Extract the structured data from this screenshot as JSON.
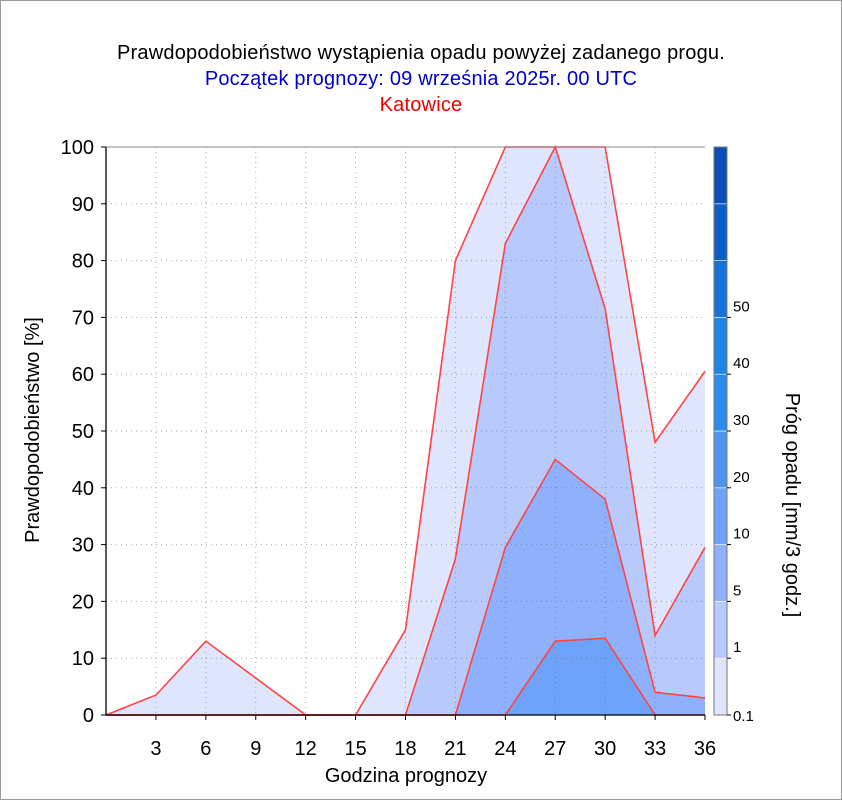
{
  "chart_data": {
    "type": "area",
    "title": "Prawdopodobieństwo wystąpienia opadu powyżej zadanego progu.",
    "subtitle": "Początek prognozy: 09 września 2025r. 00 UTC",
    "location": "Katowice",
    "xlabel": "Godzina prognozy",
    "ylabel": "Prawdopodobieństwo [%]",
    "x": [
      0,
      3,
      6,
      9,
      12,
      15,
      18,
      21,
      24,
      27,
      30,
      33,
      36
    ],
    "x_ticks": [
      "3",
      "6",
      "9",
      "12",
      "15",
      "18",
      "21",
      "24",
      "27",
      "30",
      "33",
      "36"
    ],
    "xlim": [
      0,
      36
    ],
    "ylim": [
      0,
      100
    ],
    "y_ticks": [
      "0",
      "10",
      "20",
      "30",
      "40",
      "50",
      "60",
      "70",
      "80",
      "90",
      "100"
    ],
    "grid": true,
    "series": [
      {
        "threshold": 0.1,
        "color": "#dfe5fc",
        "values": [
          0,
          3.5,
          13,
          6.5,
          0,
          0,
          15,
          80,
          100,
          100,
          100,
          48,
          60.5
        ]
      },
      {
        "threshold": 1,
        "color": "#b8cafc",
        "values": [
          0,
          0,
          0,
          0,
          0,
          0,
          0,
          27.5,
          83,
          100,
          71.5,
          14,
          29.5
        ]
      },
      {
        "threshold": 5,
        "color": "#8fb0fd",
        "values": [
          0,
          0,
          0,
          0,
          0,
          0,
          0,
          0,
          29.5,
          45,
          38,
          4,
          3
        ]
      },
      {
        "threshold": 10,
        "color": "#6ea3f9",
        "values": [
          0,
          0,
          0,
          0,
          0,
          0,
          0,
          0,
          0,
          13,
          13.5,
          0,
          0
        ]
      }
    ],
    "line_color": "#ff4444",
    "colorbar": {
      "label": "Próg opadu [mm/3 godz.]",
      "labels": [
        "0.1",
        "1",
        "5",
        "10",
        "20",
        "30",
        "40",
        "50"
      ],
      "colors": [
        "#dfe5fc",
        "#b8cafc",
        "#8fb0fd",
        "#6ea3f9",
        "#4f95ee",
        "#2b8cf0",
        "#1f86e6",
        "#1572d8",
        "#0c5ec8",
        "#0a4fb8"
      ]
    }
  }
}
